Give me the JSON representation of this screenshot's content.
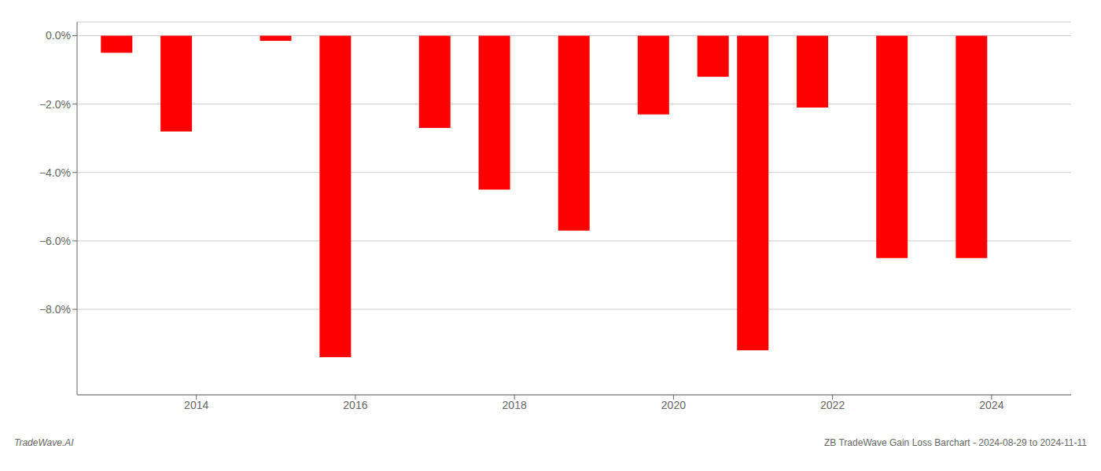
{
  "chart_data": {
    "type": "bar",
    "x": [
      2013,
      2013.75,
      2015,
      2015.75,
      2017,
      2017.75,
      2018.75,
      2019.75,
      2020.5,
      2021,
      2021.75,
      2022.75,
      2023.75
    ],
    "values": [
      -0.5,
      -2.8,
      -0.15,
      -9.4,
      -2.7,
      -4.5,
      -5.7,
      -2.3,
      -1.2,
      -9.2,
      -2.1,
      -6.5,
      -6.5
    ],
    "color": "#ff0000",
    "xlim": [
      2012.5,
      2025.0
    ],
    "xticks": [
      2014,
      2016,
      2018,
      2020,
      2022,
      2024
    ],
    "ylim": [
      -10.5,
      0.4
    ],
    "yticks": [
      {
        "value": 0.0,
        "label": "0.0%"
      },
      {
        "value": -2.0,
        "label": "−2.0%"
      },
      {
        "value": -4.0,
        "label": "−4.0%"
      },
      {
        "value": -6.0,
        "label": "−6.0%"
      },
      {
        "value": -8.0,
        "label": "−8.0%"
      }
    ],
    "grid": true,
    "annotations": [
      "TradeWave.AI",
      "ZB TradeWave Gain Loss Barchart - 2024-08-29 to 2024-11-11"
    ]
  }
}
